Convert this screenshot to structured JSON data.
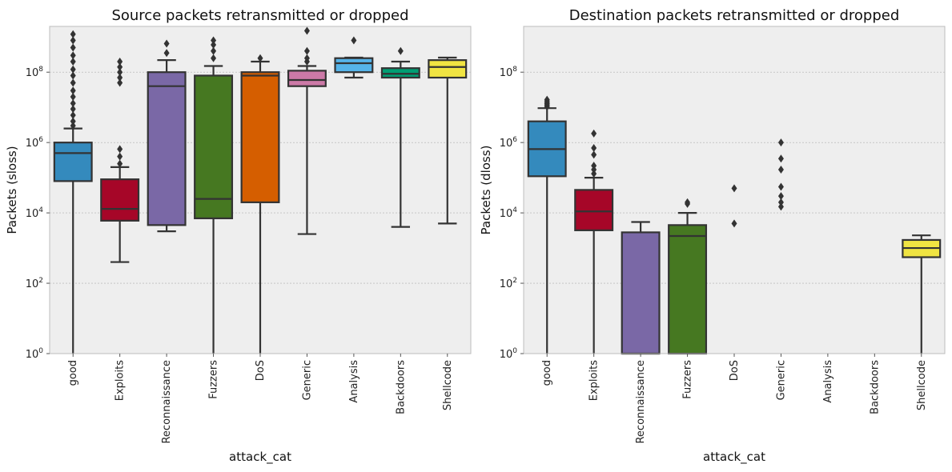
{
  "chart_data": [
    {
      "type": "box",
      "title": "Source packets retransmitted or dropped",
      "xlabel": "attack_cat",
      "ylabel": "Packets (sloss)",
      "yscale": "log",
      "ylim": [
        1,
        2000000000.0
      ],
      "yticks": [
        {
          "value": 1,
          "base": "10",
          "exp": "0"
        },
        {
          "value": 100,
          "base": "10",
          "exp": "2"
        },
        {
          "value": 10000,
          "base": "10",
          "exp": "4"
        },
        {
          "value": 1000000,
          "base": "10",
          "exp": "6"
        },
        {
          "value": 100000000,
          "base": "10",
          "exp": "8"
        }
      ],
      "grid": true,
      "categories": [
        "good",
        "Exploits",
        "Reconnaissance",
        "Fuzzers",
        "DoS",
        "Generic",
        "Analysis",
        "Backdoors",
        "Shellcode"
      ],
      "boxes": [
        {
          "q1": 80000,
          "median": 500000,
          "q3": 1000000,
          "whisker_low": 1,
          "whisker_high": 2500000,
          "outliers": [
            3000000.0,
            4000000.0,
            6000000.0,
            9000000.0,
            13000000.0,
            20000000.0,
            30000000.0,
            50000000.0,
            80000000.0,
            120000000.0,
            200000000.0,
            300000000.0,
            500000000.0,
            800000000.0,
            1200000000.0
          ]
        },
        {
          "q1": 6000,
          "median": 13000,
          "q3": 90000,
          "whisker_low": 400,
          "whisker_high": 200000,
          "outliers": [
            250000.0,
            400000.0,
            650000.0,
            50000000.0,
            70000000.0,
            100000000.0,
            140000000.0,
            200000000.0
          ]
        },
        {
          "q1": 4500,
          "median": 40000000.0,
          "q3": 100000000.0,
          "whisker_low": 3000,
          "whisker_high": 220000000.0,
          "outliers": [
            350000000.0,
            650000000.0
          ]
        },
        {
          "q1": 7000,
          "median": 25000,
          "q3": 80000000.0,
          "whisker_low": 1,
          "whisker_high": 150000000.0,
          "outliers": [
            250000000.0,
            400000000.0,
            600000000.0,
            800000000.0
          ]
        },
        {
          "q1": 20000,
          "median": 80000000.0,
          "q3": 100000000.0,
          "whisker_low": 1,
          "whisker_high": 200000000.0,
          "outliers": [
            250000000.0
          ]
        },
        {
          "q1": 40000000.0,
          "median": 60000000.0,
          "q3": 110000000.0,
          "whisker_low": 2500,
          "whisker_high": 150000000.0,
          "outliers": [
            200000000.0,
            250000000.0,
            400000000.0,
            1500000000.0
          ]
        },
        {
          "q1": 100000000.0,
          "median": 180000000.0,
          "q3": 250000000.0,
          "whisker_low": 70000000.0,
          "whisker_high": 260000000.0,
          "outliers": [
            800000000.0
          ]
        },
        {
          "q1": 70000000.0,
          "median": 90000000.0,
          "q3": 130000000.0,
          "whisker_low": 4000,
          "whisker_high": 200000000.0,
          "outliers": [
            400000000.0
          ]
        },
        {
          "q1": 70000000.0,
          "median": 140000000.0,
          "q3": 220000000.0,
          "whisker_low": 5000,
          "whisker_high": 260000000.0,
          "outliers": []
        }
      ]
    },
    {
      "type": "box",
      "title": "Destination packets retransmitted or dropped",
      "xlabel": "attack_cat",
      "ylabel": "Packets (dloss)",
      "yscale": "log",
      "ylim": [
        1,
        2000000000.0
      ],
      "yticks": [
        {
          "value": 1,
          "base": "10",
          "exp": "0"
        },
        {
          "value": 100,
          "base": "10",
          "exp": "2"
        },
        {
          "value": 10000,
          "base": "10",
          "exp": "4"
        },
        {
          "value": 1000000,
          "base": "10",
          "exp": "6"
        },
        {
          "value": 100000000,
          "base": "10",
          "exp": "8"
        }
      ],
      "grid": true,
      "categories": [
        "good",
        "Exploits",
        "Reconnaissance",
        "Fuzzers",
        "DoS",
        "Generic",
        "Analysis",
        "Backdoors",
        "Shellcode"
      ],
      "boxes": [
        {
          "q1": 110000,
          "median": 650000,
          "q3": 4000000,
          "whisker_low": 1,
          "whisker_high": 9500000,
          "outliers": [
            10500000.0,
            11500000.0,
            12500000.0,
            13500000.0,
            15000000.0,
            16500000.0
          ]
        },
        {
          "q1": 3200,
          "median": 11000,
          "q3": 45000,
          "whisker_low": 1,
          "whisker_high": 100000,
          "outliers": [
            130000.0,
            170000.0,
            220000.0,
            450000.0,
            700000.0,
            1800000.0
          ]
        },
        {
          "q1": 1,
          "median": 1,
          "q3": 2800,
          "whisker_low": 1,
          "whisker_high": 5500,
          "outliers": []
        },
        {
          "q1": 1,
          "median": 2200,
          "q3": 4500,
          "whisker_low": 1,
          "whisker_high": 10000,
          "outliers": [
            18000,
            20000
          ]
        },
        null,
        null,
        null,
        null,
        {
          "q1": 550,
          "median": 1000,
          "q3": 1700,
          "whisker_low": 1,
          "whisker_high": 2300,
          "outliers": []
        }
      ],
      "lone_points": [
        {
          "category": "DoS",
          "values": [
            5000,
            50000
          ]
        },
        {
          "category": "Generic",
          "values": [
            15000,
            20000,
            30000,
            55000,
            170000,
            350000,
            1000000
          ]
        }
      ]
    }
  ],
  "palette": [
    "#348abd",
    "#a60628",
    "#7a68a6",
    "#467821",
    "#d55e00",
    "#cc79a7",
    "#56b4e9",
    "#009e73",
    "#f0e442"
  ]
}
